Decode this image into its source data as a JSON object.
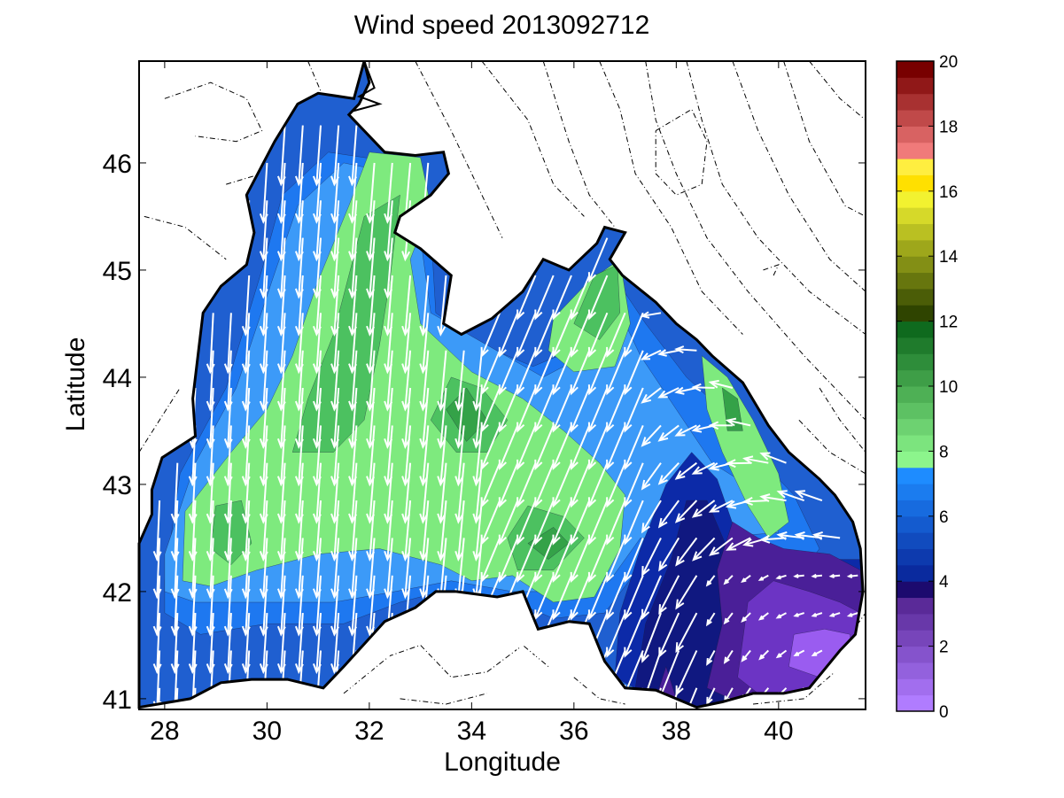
{
  "chart_data": {
    "type": "filled-contour map with wind vectors",
    "title": "Wind speed 2013092712",
    "xlabel": "Longitude",
    "ylabel": "Latitude",
    "xlim": [
      27.5,
      41.7
    ],
    "ylim": [
      40.9,
      46.95
    ],
    "xticks": [
      28,
      30,
      32,
      34,
      36,
      38,
      40
    ],
    "yticks": [
      41,
      42,
      43,
      44,
      45,
      46
    ],
    "colorbar": {
      "range": [
        0,
        20
      ],
      "ticks": [
        0,
        2,
        4,
        6,
        8,
        10,
        12,
        14,
        16,
        18,
        20
      ],
      "color_stops": [
        {
          "from": 0,
          "to": 3.5,
          "colors": [
            "#b07cff",
            "#5a2a98"
          ]
        },
        {
          "from": 3.5,
          "to": 4.0,
          "colors": [
            "#1c0a6e",
            "#10106a"
          ]
        },
        {
          "from": 4.0,
          "to": 7.5,
          "colors": [
            "#0a2a9e",
            "#1e8cff"
          ]
        },
        {
          "from": 7.5,
          "to": 12.0,
          "colors": [
            "#8cf58c",
            "#0f6a1e"
          ]
        },
        {
          "from": 12.0,
          "to": 16.0,
          "colors": [
            "#2f4400",
            "#f2f230"
          ]
        },
        {
          "from": 16.0,
          "to": 17.0,
          "colors": [
            "#ffe000",
            "#ffee40"
          ]
        },
        {
          "from": 17.0,
          "to": 20.0,
          "colors": [
            "#f07a7a",
            "#780000"
          ]
        }
      ]
    },
    "wind_speed_regions": [
      {
        "label": "4-7 m/s",
        "color": "#1f5fd0",
        "region": "western and northwestern shelf"
      },
      {
        "label": "7-9 m/s",
        "color": "#7eea7e",
        "region": "central basin band"
      },
      {
        "label": "9-10 m/s",
        "color": "#3fae4a",
        "region": "local maxima near 30.8E 43.5N, 33.8E 43.6N, 35.5E 42.5N, 36.5E 44.5N"
      },
      {
        "label": "0-4 m/s",
        "color": "#6a34b8",
        "region": "southeastern basin 38-41.5E 41-42.7N"
      }
    ],
    "wind_direction": "mostly southward in the west, southwestward in the centre, westward in the southeast"
  }
}
